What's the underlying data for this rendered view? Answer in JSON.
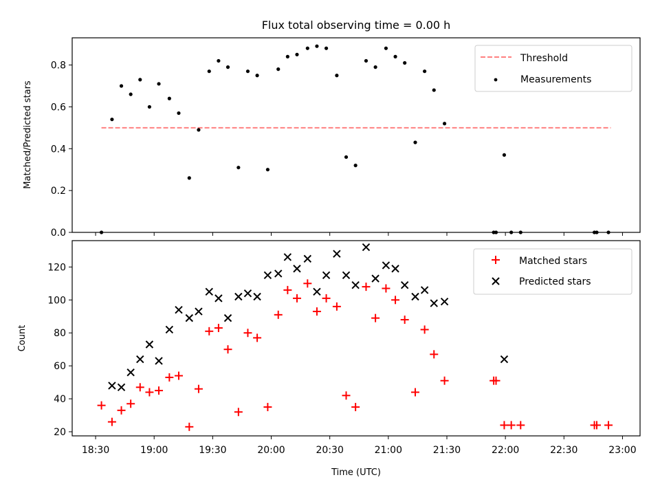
{
  "title": "Flux total observing time = 0.00 h",
  "chart_data": [
    {
      "type": "scatter",
      "ylabel": "Matched/Predicted stars",
      "xlim": [
        18.3,
        23.15
      ],
      "ylim": [
        0,
        0.93
      ],
      "yticks": [
        0.0,
        0.2,
        0.4,
        0.6,
        0.8
      ],
      "ytick_labels": [
        "0.0",
        "0.2",
        "0.4",
        "0.6",
        "0.8"
      ],
      "legend": [
        "Threshold",
        "Measurements"
      ],
      "legend_position": "top-right",
      "threshold": {
        "name": "Threshold",
        "y": 0.5,
        "x_start": 18.55,
        "x_end": 22.9,
        "color": "#ff7f7f",
        "style": "dashed"
      },
      "series": [
        {
          "name": "Measurements",
          "color": "#000000",
          "marker": "dot",
          "x": [
            18.55,
            18.64,
            18.72,
            18.8,
            18.88,
            18.96,
            19.04,
            19.13,
            19.21,
            19.3,
            19.38,
            19.47,
            19.55,
            19.63,
            19.72,
            19.8,
            19.88,
            19.97,
            20.06,
            20.14,
            20.22,
            20.31,
            20.39,
            20.47,
            20.56,
            20.64,
            20.72,
            20.81,
            20.89,
            20.98,
            21.06,
            21.14,
            21.23,
            21.31,
            21.39,
            21.48,
            21.9,
            21.92,
            21.99,
            22.05,
            22.13,
            22.76,
            22.78,
            22.88
          ],
          "y": [
            0.0,
            0.54,
            0.7,
            0.66,
            0.73,
            0.6,
            0.71,
            0.64,
            0.57,
            0.26,
            0.49,
            0.77,
            0.82,
            0.79,
            0.31,
            0.77,
            0.75,
            0.3,
            0.78,
            0.84,
            0.85,
            0.88,
            0.89,
            0.88,
            0.75,
            0.36,
            0.32,
            0.82,
            0.79,
            0.88,
            0.84,
            0.81,
            0.43,
            0.77,
            0.68,
            0.52,
            0.0,
            0.0,
            0.37,
            0.0,
            0.0,
            0.0,
            0.0,
            0.0
          ]
        }
      ]
    },
    {
      "type": "scatter",
      "xlabel": "Time (UTC)",
      "ylabel": "Count",
      "xlim": [
        18.3,
        23.15
      ],
      "ylim": [
        17.5,
        136
      ],
      "xticks": [
        18.5,
        19.0,
        19.5,
        20.0,
        20.5,
        21.0,
        21.5,
        22.0,
        22.5,
        23.0
      ],
      "xtick_labels": [
        "18:30",
        "19:00",
        "19:30",
        "20:00",
        "20:30",
        "21:00",
        "21:30",
        "22:00",
        "22:30",
        "23:00"
      ],
      "yticks": [
        20,
        40,
        60,
        80,
        100,
        120
      ],
      "ytick_labels": [
        "20",
        "40",
        "60",
        "80",
        "100",
        "120"
      ],
      "legend": [
        "Matched stars",
        "Predicted stars"
      ],
      "legend_position": "top-right",
      "series": [
        {
          "name": "Matched stars",
          "color": "#ff0000",
          "marker": "plus",
          "x": [
            18.55,
            18.64,
            18.72,
            18.8,
            18.88,
            18.96,
            19.04,
            19.13,
            19.21,
            19.3,
            19.38,
            19.47,
            19.55,
            19.63,
            19.72,
            19.8,
            19.88,
            19.97,
            20.06,
            20.14,
            20.22,
            20.31,
            20.39,
            20.47,
            20.56,
            20.64,
            20.72,
            20.81,
            20.89,
            20.98,
            21.06,
            21.14,
            21.23,
            21.31,
            21.39,
            21.48,
            21.9,
            21.92,
            21.99,
            22.05,
            22.13,
            22.76,
            22.78,
            22.88
          ],
          "y": [
            36,
            26,
            33,
            37,
            47,
            44,
            45,
            53,
            54,
            23,
            46,
            81,
            83,
            70,
            32,
            80,
            77,
            35,
            91,
            106,
            101,
            110,
            93,
            101,
            96,
            42,
            35,
            108,
            89,
            107,
            100,
            88,
            44,
            82,
            67,
            51,
            51,
            51,
            24,
            24,
            24,
            24,
            24,
            24
          ]
        },
        {
          "name": "Predicted stars",
          "color": "#000000",
          "marker": "x",
          "x": [
            18.64,
            18.72,
            18.8,
            18.88,
            18.96,
            19.04,
            19.13,
            19.21,
            19.3,
            19.38,
            19.47,
            19.55,
            19.63,
            19.72,
            19.8,
            19.88,
            19.97,
            20.06,
            20.14,
            20.22,
            20.31,
            20.39,
            20.47,
            20.56,
            20.64,
            20.72,
            20.81,
            20.89,
            20.98,
            21.06,
            21.14,
            21.23,
            21.31,
            21.39,
            21.48,
            21.99
          ],
          "y": [
            48,
            47,
            56,
            64,
            73,
            63,
            82,
            94,
            89,
            93,
            105,
            101,
            89,
            102,
            104,
            102,
            115,
            116,
            126,
            119,
            125,
            105,
            115,
            128,
            115,
            109,
            132,
            113,
            121,
            119,
            109,
            102,
            106,
            98,
            99,
            64
          ]
        }
      ]
    }
  ]
}
